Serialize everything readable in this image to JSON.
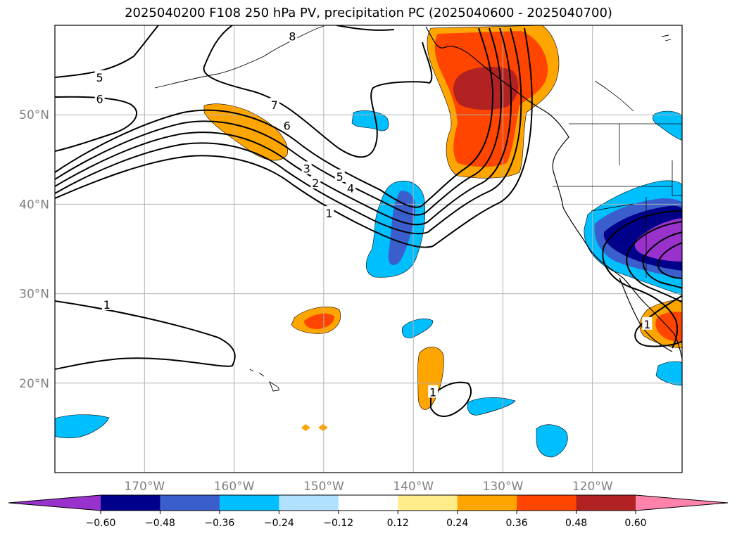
{
  "chart_data": {
    "type": "map",
    "title": "2025040200 F108 250 hPa PV, precipitation PC (2025040600 - 2025040700)",
    "xlim": [
      -180,
      -110
    ],
    "ylim": [
      10,
      60
    ],
    "lat_ticks": [
      {
        "value": 50,
        "label": "50°N"
      },
      {
        "value": 40,
        "label": "40°N"
      },
      {
        "value": 30,
        "label": "30°N"
      },
      {
        "value": 20,
        "label": "20°N"
      }
    ],
    "lon_ticks": [
      {
        "value": -170,
        "label": "170°W"
      },
      {
        "value": -160,
        "label": "160°W"
      },
      {
        "value": -150,
        "label": "150°W"
      },
      {
        "value": -140,
        "label": "140°W"
      },
      {
        "value": -130,
        "label": "130°W"
      },
      {
        "value": -120,
        "label": "120°W"
      }
    ],
    "grid": true,
    "colorbar": {
      "boundaries": [
        "−0.60",
        "−0.48",
        "−0.36",
        "−0.24",
        "−0.12",
        "0.12",
        "0.24",
        "0.36",
        "0.48",
        "0.60"
      ],
      "colors": [
        "#9932cc",
        "#00008b",
        "#3a5fcd",
        "#00bfff",
        "#b0e2ff",
        "#ffffff",
        "#ffec8b",
        "#ffa500",
        "#ff4500",
        "#b22222",
        "#ff82ab"
      ],
      "extend": "both"
    },
    "pv_contour_labels": [
      {
        "text": "8",
        "lon": -153.5,
        "lat": 58.8
      },
      {
        "text": "5",
        "lon": -175,
        "lat": 54.2
      },
      {
        "text": "6",
        "lon": -175,
        "lat": 51.8
      },
      {
        "text": "7",
        "lon": -155.5,
        "lat": 51.1
      },
      {
        "text": "6",
        "lon": -154.1,
        "lat": 48.8
      },
      {
        "text": "3",
        "lon": -151.9,
        "lat": 44.0
      },
      {
        "text": "2",
        "lon": -150.9,
        "lat": 42.4
      },
      {
        "text": "5",
        "lon": -148.2,
        "lat": 43.1
      },
      {
        "text": "4",
        "lon": -147.0,
        "lat": 41.8
      },
      {
        "text": "1",
        "lon": -149.4,
        "lat": 39.0
      },
      {
        "text": "1",
        "lon": -174.2,
        "lat": 28.8
      },
      {
        "text": "1",
        "lon": -137.8,
        "lat": 19.0
      },
      {
        "text": "1",
        "lon": -113.9,
        "lat": 26.6
      }
    ]
  }
}
